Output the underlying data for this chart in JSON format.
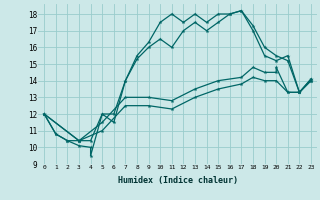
{
  "xlabel": "Humidex (Indice chaleur)",
  "bg_color": "#cce8e8",
  "grid_color": "#99cccc",
  "line_color": "#006666",
  "xlim": [
    -0.5,
    23.5
  ],
  "ylim": [
    9,
    18.6
  ],
  "xticks": [
    0,
    1,
    2,
    3,
    4,
    5,
    6,
    7,
    8,
    9,
    10,
    11,
    12,
    13,
    14,
    15,
    16,
    17,
    18,
    19,
    20,
    21,
    22,
    23
  ],
  "yticks": [
    9,
    10,
    11,
    12,
    13,
    14,
    15,
    16,
    17,
    18
  ],
  "line1_x": [
    0,
    1,
    2,
    3,
    4,
    4,
    5,
    6,
    7,
    8,
    9,
    10,
    11,
    12,
    13,
    14,
    15,
    16,
    17,
    18,
    19,
    20,
    21,
    22,
    23
  ],
  "line1_y": [
    12,
    10.8,
    10.4,
    10.1,
    10.0,
    9.5,
    12.0,
    11.5,
    14.0,
    15.5,
    16.3,
    17.5,
    18.0,
    17.5,
    18.0,
    17.5,
    18.0,
    18.0,
    18.2,
    17.3,
    16.0,
    15.5,
    15.2,
    13.3,
    14.0
  ],
  "line2_x": [
    0,
    1,
    2,
    3,
    4,
    5,
    6,
    7,
    8,
    9,
    10,
    11,
    12,
    13,
    14,
    15,
    16,
    17,
    18,
    19,
    20,
    21,
    22,
    23
  ],
  "line2_y": [
    12,
    10.8,
    10.4,
    10.4,
    10.4,
    12.0,
    12.0,
    14.0,
    15.3,
    16.0,
    16.5,
    16.0,
    17.0,
    17.5,
    17.0,
    17.5,
    18.0,
    18.2,
    17.0,
    15.5,
    15.2,
    15.5,
    13.3,
    14.0
  ],
  "line3_x": [
    0,
    3,
    5,
    7,
    9,
    11,
    13,
    15,
    17,
    18,
    19,
    20,
    20,
    21,
    22,
    23
  ],
  "line3_y": [
    12,
    10.4,
    11.5,
    13.0,
    13.0,
    12.8,
    13.5,
    14.0,
    14.2,
    14.8,
    14.5,
    14.5,
    14.8,
    13.3,
    13.3,
    14.1
  ],
  "line4_x": [
    0,
    3,
    5,
    7,
    9,
    11,
    13,
    15,
    17,
    18,
    19,
    20,
    21,
    22,
    23
  ],
  "line4_y": [
    12,
    10.4,
    11.0,
    12.5,
    12.5,
    12.3,
    13.0,
    13.5,
    13.8,
    14.2,
    14.0,
    14.0,
    13.3,
    13.3,
    14.1
  ],
  "markersize": 3,
  "linewidth": 0.9
}
